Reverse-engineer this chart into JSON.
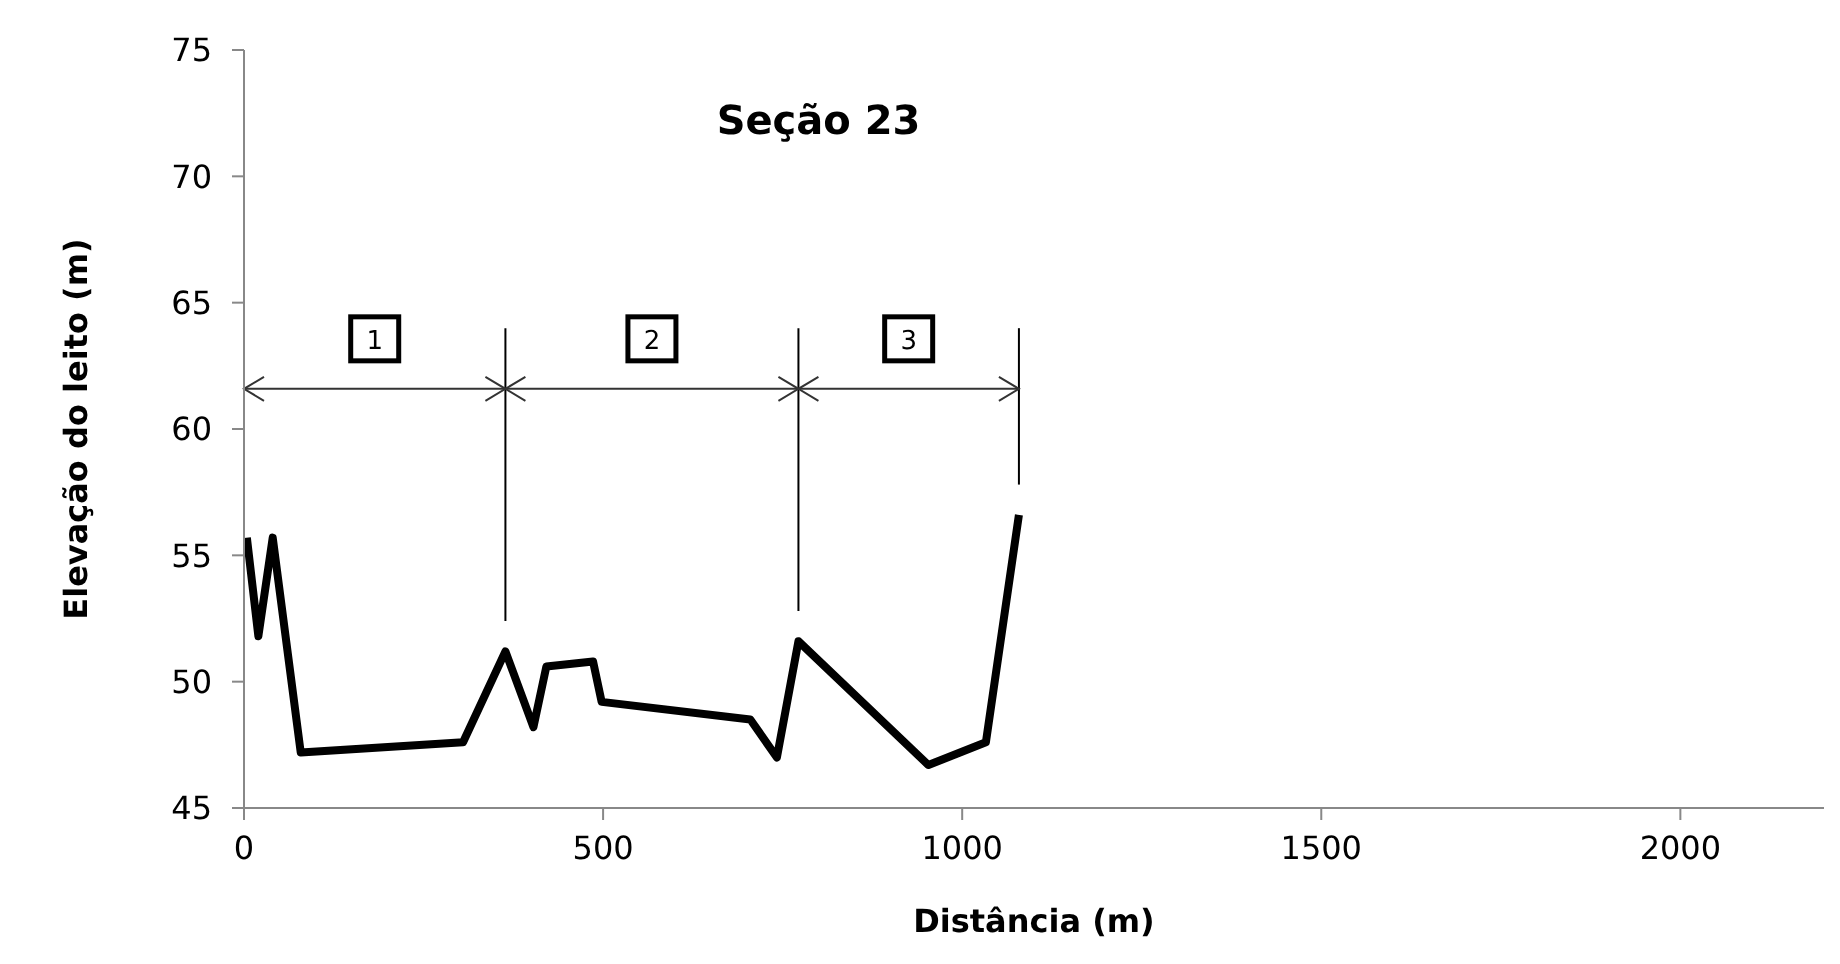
{
  "chart_data": {
    "type": "line",
    "title": "Seção 23",
    "xlabel": "Distância (m)",
    "ylabel": "Elevação do leito (m)",
    "x": [
      4,
      20,
      40,
      79,
      305,
      364,
      403,
      421,
      486,
      498,
      705,
      742,
      772,
      953,
      1033,
      1079
    ],
    "series": [
      {
        "color": "#000000",
        "values": [
          55.7,
          51.8,
          55.7,
          47.2,
          47.6,
          51.2,
          48.2,
          50.6,
          50.8,
          49.2,
          48.5,
          47.0,
          51.6,
          46.7,
          47.6,
          56.6
        ]
      }
    ],
    "xlim": [
      0,
      2200
    ],
    "xticks": [
      0,
      500,
      1000,
      1500,
      2000
    ],
    "ylim": [
      45,
      75
    ],
    "yticks": [
      45,
      50,
      55,
      60,
      65,
      70,
      75
    ],
    "marker": "none",
    "line_style": "solid",
    "ref_lines": [
      {
        "axis": "x",
        "value": 364,
        "color": "#000000"
      },
      {
        "axis": "x",
        "value": 772,
        "color": "#000000"
      },
      {
        "axis": "x",
        "value": 1079,
        "color": "#000000"
      }
    ],
    "annotations": [
      "1",
      "2",
      "3"
    ]
  }
}
